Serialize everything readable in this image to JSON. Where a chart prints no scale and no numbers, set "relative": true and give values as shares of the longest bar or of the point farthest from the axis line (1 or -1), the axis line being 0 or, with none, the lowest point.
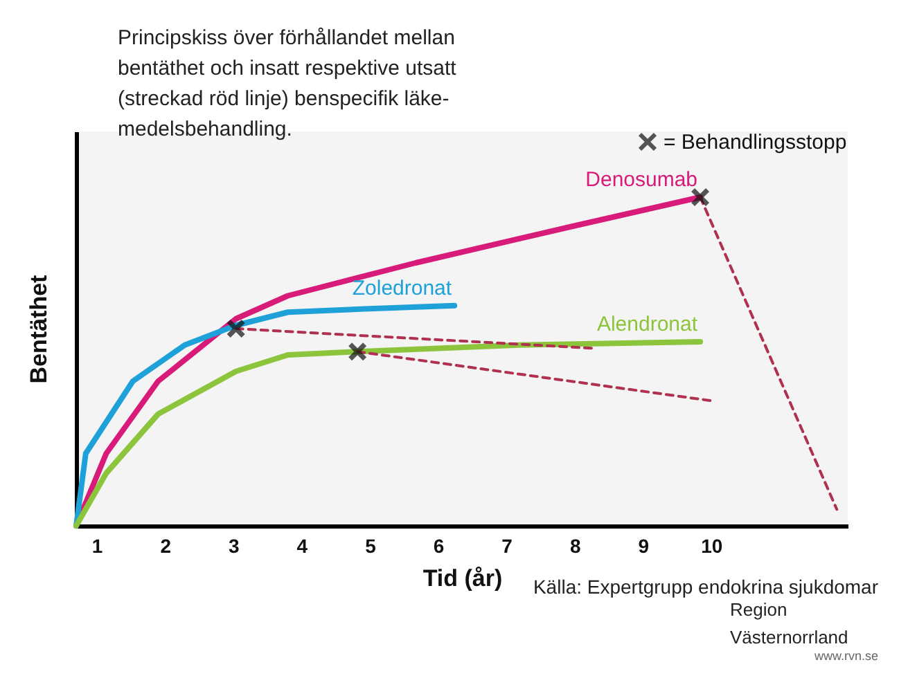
{
  "chart_data": {
    "type": "line",
    "relative": true,
    "xlabel": "Tid (år)",
    "ylabel": "Bentäthet",
    "xlim": [
      0.7,
      12
    ],
    "xticks": [
      1,
      2,
      3,
      4,
      5,
      6,
      7,
      8,
      9,
      10
    ],
    "legend": "top right",
    "annotations": [
      "Principskiss över förhållandet mellan\nbentäthet och insatt respektive utsatt\n(streckad röd linje) benspecifik läke-\nmedelsbehandling.",
      "Källa: Expertgrupp endokrina sjukdomar",
      "Region\nVästernorrland",
      "www.rvn.se"
    ],
    "series": [
      {
        "name": "Denosumab",
        "color": "#d81b78",
        "x": [
          0.7,
          1.14,
          1.9,
          3.04,
          3.8,
          5.67,
          7.94,
          9.84
        ],
        "values": [
          0,
          0.22,
          0.44,
          0.63,
          0.7,
          0.8,
          0.91,
          1.0
        ]
      },
      {
        "name": "Zoledronat",
        "color": "#1ea0d8",
        "x": [
          0.7,
          0.84,
          1.53,
          2.29,
          3.04,
          3.8,
          4.92,
          6.24
        ],
        "values": [
          0,
          0.22,
          0.44,
          0.55,
          0.61,
          0.65,
          0.66,
          0.67
        ]
      },
      {
        "name": "Alendronat",
        "color": "#8cc43c",
        "x": [
          0.7,
          1.14,
          1.9,
          3.04,
          3.8,
          4.82,
          7.18,
          9.84
        ],
        "values": [
          0,
          0.16,
          0.34,
          0.47,
          0.52,
          0.53,
          0.55,
          0.56
        ]
      },
      {
        "color": "#b03050",
        "line_style": "dashed",
        "x": [
          3.04,
          8.29
        ],
        "values": [
          0.6,
          0.54
        ]
      },
      {
        "color": "#b03050",
        "line_style": "dashed",
        "x": [
          4.82,
          10.02
        ],
        "values": [
          0.53,
          0.38
        ]
      },
      {
        "color": "#b03050",
        "line_style": "dashed",
        "x": [
          9.84,
          11.84
        ],
        "values": [
          1.0,
          0.05
        ]
      },
      {
        "type": "scatter",
        "name": "= Behandlingsstopp",
        "color": "#111111",
        "marker": "cross",
        "x": [
          3.04,
          4.82,
          9.84
        ],
        "values": [
          0.6,
          0.53,
          1.0
        ]
      }
    ]
  }
}
